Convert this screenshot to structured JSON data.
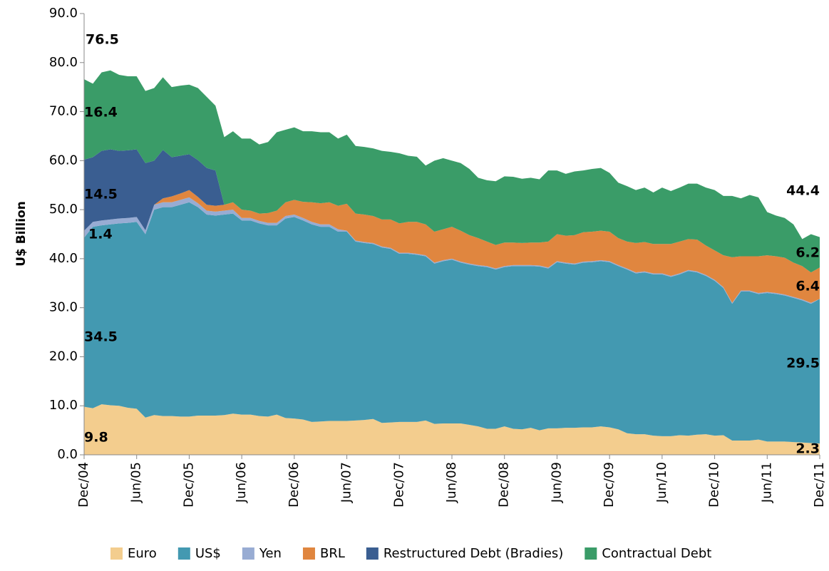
{
  "chart_data": {
    "type": "stacked_area",
    "y_axis_label": "U$ Billion",
    "categories": [
      "Dec/04",
      null,
      null,
      null,
      null,
      null,
      "Jun/05",
      null,
      null,
      null,
      null,
      null,
      "Dec/05",
      null,
      null,
      null,
      null,
      null,
      "Jun/06",
      null,
      null,
      null,
      null,
      null,
      "Dec/06",
      null,
      null,
      null,
      null,
      null,
      "Jun/07",
      null,
      null,
      null,
      null,
      null,
      "Dec/07",
      null,
      null,
      null,
      null,
      null,
      "Jun/08",
      null,
      null,
      null,
      null,
      null,
      "Dec/08",
      null,
      null,
      null,
      null,
      null,
      "Jun/09",
      null,
      null,
      null,
      null,
      null,
      "Dec/09",
      null,
      null,
      null,
      null,
      null,
      "Jun/10",
      null,
      null,
      null,
      null,
      null,
      "Dec/10",
      null,
      null,
      null,
      null,
      null,
      "Jun/11",
      null,
      null,
      null,
      null,
      null,
      "Dec/11"
    ],
    "series": [
      {
        "name": "Euro",
        "color": "#f3cd8e",
        "values": [
          9.8,
          9.5,
          10.3,
          10.1,
          10.0,
          9.6,
          9.4,
          7.6,
          8.1,
          7.9,
          7.9,
          7.8,
          7.8,
          8.0,
          8.0,
          8.0,
          8.1,
          8.4,
          8.2,
          8.2,
          7.9,
          7.8,
          8.2,
          7.5,
          7.4,
          7.2,
          6.7,
          6.8,
          6.9,
          6.9,
          6.9,
          7.0,
          7.1,
          7.3,
          6.5,
          6.6,
          6.7,
          6.7,
          6.7,
          7.0,
          6.3,
          6.4,
          6.4,
          6.4,
          6.1,
          5.8,
          5.3,
          5.3,
          5.8,
          5.3,
          5.2,
          5.5,
          5.0,
          5.4,
          5.4,
          5.5,
          5.5,
          5.6,
          5.6,
          5.8,
          5.6,
          5.2,
          4.4,
          4.2,
          4.2,
          3.9,
          3.8,
          3.8,
          4.0,
          3.9,
          4.1,
          4.2,
          3.9,
          4.0,
          2.9,
          2.9,
          2.9,
          3.1,
          2.7,
          2.7,
          2.7,
          2.6,
          2.5,
          2.4,
          2.3
        ]
      },
      {
        "name": "US$",
        "color": "#4399b1",
        "values": [
          34.5,
          37.0,
          36.5,
          36.9,
          37.2,
          37.7,
          38.1,
          37.4,
          41.9,
          42.6,
          42.6,
          43.2,
          43.7,
          42.5,
          41.0,
          40.8,
          40.9,
          40.8,
          39.6,
          39.6,
          39.3,
          39.0,
          38.6,
          40.7,
          41.1,
          40.6,
          40.3,
          39.7,
          39.6,
          38.6,
          38.6,
          36.5,
          36.1,
          35.7,
          35.8,
          35.4,
          34.3,
          34.3,
          34.1,
          33.5,
          32.7,
          33.1,
          33.4,
          32.8,
          32.7,
          32.7,
          33.0,
          32.5,
          32.5,
          33.2,
          33.3,
          33.0,
          33.4,
          32.6,
          33.9,
          33.5,
          33.3,
          33.6,
          33.7,
          33.7,
          33.7,
          33.3,
          33.4,
          32.8,
          33.0,
          32.9,
          33.0,
          32.5,
          32.8,
          33.6,
          33.1,
          32.3,
          31.6,
          30.0,
          27.9,
          30.4,
          30.4,
          29.7,
          30.3,
          30.1,
          29.8,
          29.4,
          29.0,
          28.4,
          29.5
        ]
      },
      {
        "name": "Yen",
        "color": "#98acd3",
        "values": [
          1.4,
          1.0,
          1.0,
          1.0,
          1.0,
          1.0,
          1.0,
          0.8,
          1.0,
          1.0,
          1.0,
          1.0,
          1.0,
          0.8,
          0.8,
          0.8,
          0.8,
          0.8,
          0.5,
          0.5,
          0.5,
          0.5,
          0.5,
          0.5,
          0.5,
          0.5,
          0.5,
          0.5,
          0.5,
          0.5,
          0.2,
          0.2,
          0.2,
          0.2,
          0.2,
          0.2,
          0.2,
          0.2,
          0.2,
          0.2,
          0.2,
          0.2,
          0.2,
          0.2,
          0.2,
          0.2,
          0.2,
          0.2,
          0.2,
          0.2,
          0.2,
          0.2,
          0.2,
          0.2,
          0.2,
          0.2,
          0.2,
          0.2,
          0.2,
          0.2,
          0.2,
          0.2,
          0.2,
          0.2,
          0.2,
          0.2,
          0.2,
          0.2,
          0.2,
          0.2,
          0.2,
          0.2,
          0.2,
          0.2,
          0.2,
          0.2,
          0.2,
          0.2,
          0.2,
          0.2,
          0.2,
          0.2,
          0.2,
          0.2,
          0
        ]
      },
      {
        "name": "BRL",
        "color": "#e0863f",
        "values": [
          0,
          0,
          0,
          0,
          0,
          0,
          0,
          0,
          0,
          0.8,
          1.2,
          1.3,
          1.5,
          1.3,
          1.2,
          1.2,
          1.2,
          1.5,
          1.7,
          1.5,
          1.5,
          2.0,
          2.5,
          2.8,
          3.0,
          3.3,
          4.0,
          4.3,
          4.5,
          4.8,
          5.5,
          5.5,
          5.6,
          5.5,
          5.5,
          5.8,
          6.0,
          6.3,
          6.5,
          6.3,
          6.3,
          6.3,
          6.5,
          6.3,
          5.8,
          5.5,
          5.0,
          4.8,
          4.8,
          4.6,
          4.5,
          4.6,
          4.7,
          5.3,
          5.5,
          5.5,
          5.8,
          6.0,
          6.0,
          6.0,
          6.0,
          5.5,
          5.5,
          6.0,
          6.0,
          6.0,
          6.0,
          6.5,
          6.5,
          6.3,
          6.5,
          6.0,
          6.0,
          6.5,
          9.3,
          7.0,
          7.0,
          7.5,
          7.5,
          7.5,
          7.5,
          7.0,
          6.8,
          6.2,
          6.4
        ]
      },
      {
        "name": "Restructured Debt (Bradies)",
        "color": "#3a5e91",
        "values": [
          14.5,
          13.2,
          14.2,
          14.3,
          13.8,
          13.8,
          13.8,
          13.7,
          9.0,
          9.9,
          8.0,
          7.7,
          7.3,
          7.5,
          7.5,
          7.2,
          0,
          0,
          0,
          0,
          0,
          0,
          0,
          0,
          0,
          0,
          0,
          0,
          0,
          0,
          0,
          0,
          0,
          0,
          0,
          0,
          0,
          0,
          0,
          0,
          0,
          0,
          0,
          0,
          0,
          0,
          0,
          0,
          0,
          0,
          0,
          0,
          0,
          0,
          0,
          0,
          0,
          0,
          0,
          0,
          0,
          0,
          0,
          0,
          0,
          0,
          0,
          0,
          0,
          0,
          0,
          0,
          0,
          0,
          0,
          0,
          0,
          0,
          0,
          0,
          0,
          0,
          0,
          0,
          0
        ]
      },
      {
        "name": "Contractual Debt",
        "color": "#3a9c68",
        "values": [
          16.4,
          15.0,
          16.0,
          16.1,
          15.5,
          15.1,
          14.9,
          14.7,
          14.8,
          14.8,
          14.3,
          14.3,
          14.2,
          14.7,
          14.5,
          13.2,
          13.8,
          14.5,
          14.5,
          14.7,
          14.1,
          14.5,
          16.0,
          14.8,
          14.8,
          14.4,
          14.5,
          14.5,
          14.3,
          13.7,
          14.1,
          13.8,
          13.8,
          13.8,
          14.0,
          13.8,
          14.3,
          13.5,
          13.3,
          12.0,
          14.5,
          14.5,
          13.5,
          13.8,
          13.5,
          12.3,
          12.5,
          13.0,
          13.5,
          13.4,
          13.1,
          13.2,
          12.9,
          14.5,
          13.0,
          12.6,
          13.0,
          12.6,
          12.8,
          12.8,
          12.0,
          11.3,
          11.3,
          10.8,
          11.1,
          10.5,
          11.5,
          10.8,
          11.0,
          11.3,
          11.4,
          11.8,
          12.3,
          12.1,
          12.5,
          11.8,
          12.5,
          12.0,
          8.8,
          8.3,
          8.1,
          7.8,
          5.5,
          7.8,
          6.2
        ]
      }
    ],
    "annotations": [
      "76.5",
      "16.4",
      "14.5",
      "1.4",
      "34.5",
      "9.8",
      "44.4",
      "6.2",
      "6.4",
      "29.5",
      "2.3"
    ],
    "ylim": [
      0,
      90
    ],
    "yticks": [
      {
        "value": 0,
        "label": "0.0"
      },
      {
        "value": 10,
        "label": "10.0"
      },
      {
        "value": 20,
        "label": "20.0"
      },
      {
        "value": 30,
        "label": "30.0"
      },
      {
        "value": 40,
        "label": "40.0"
      },
      {
        "value": 50,
        "label": "50.0"
      },
      {
        "value": 60,
        "label": "60.0"
      },
      {
        "value": 70,
        "label": "70.0"
      },
      {
        "value": 80,
        "label": "80.0"
      },
      {
        "value": 90,
        "label": "90.0"
      }
    ],
    "grid": false,
    "legend": "bottom"
  }
}
